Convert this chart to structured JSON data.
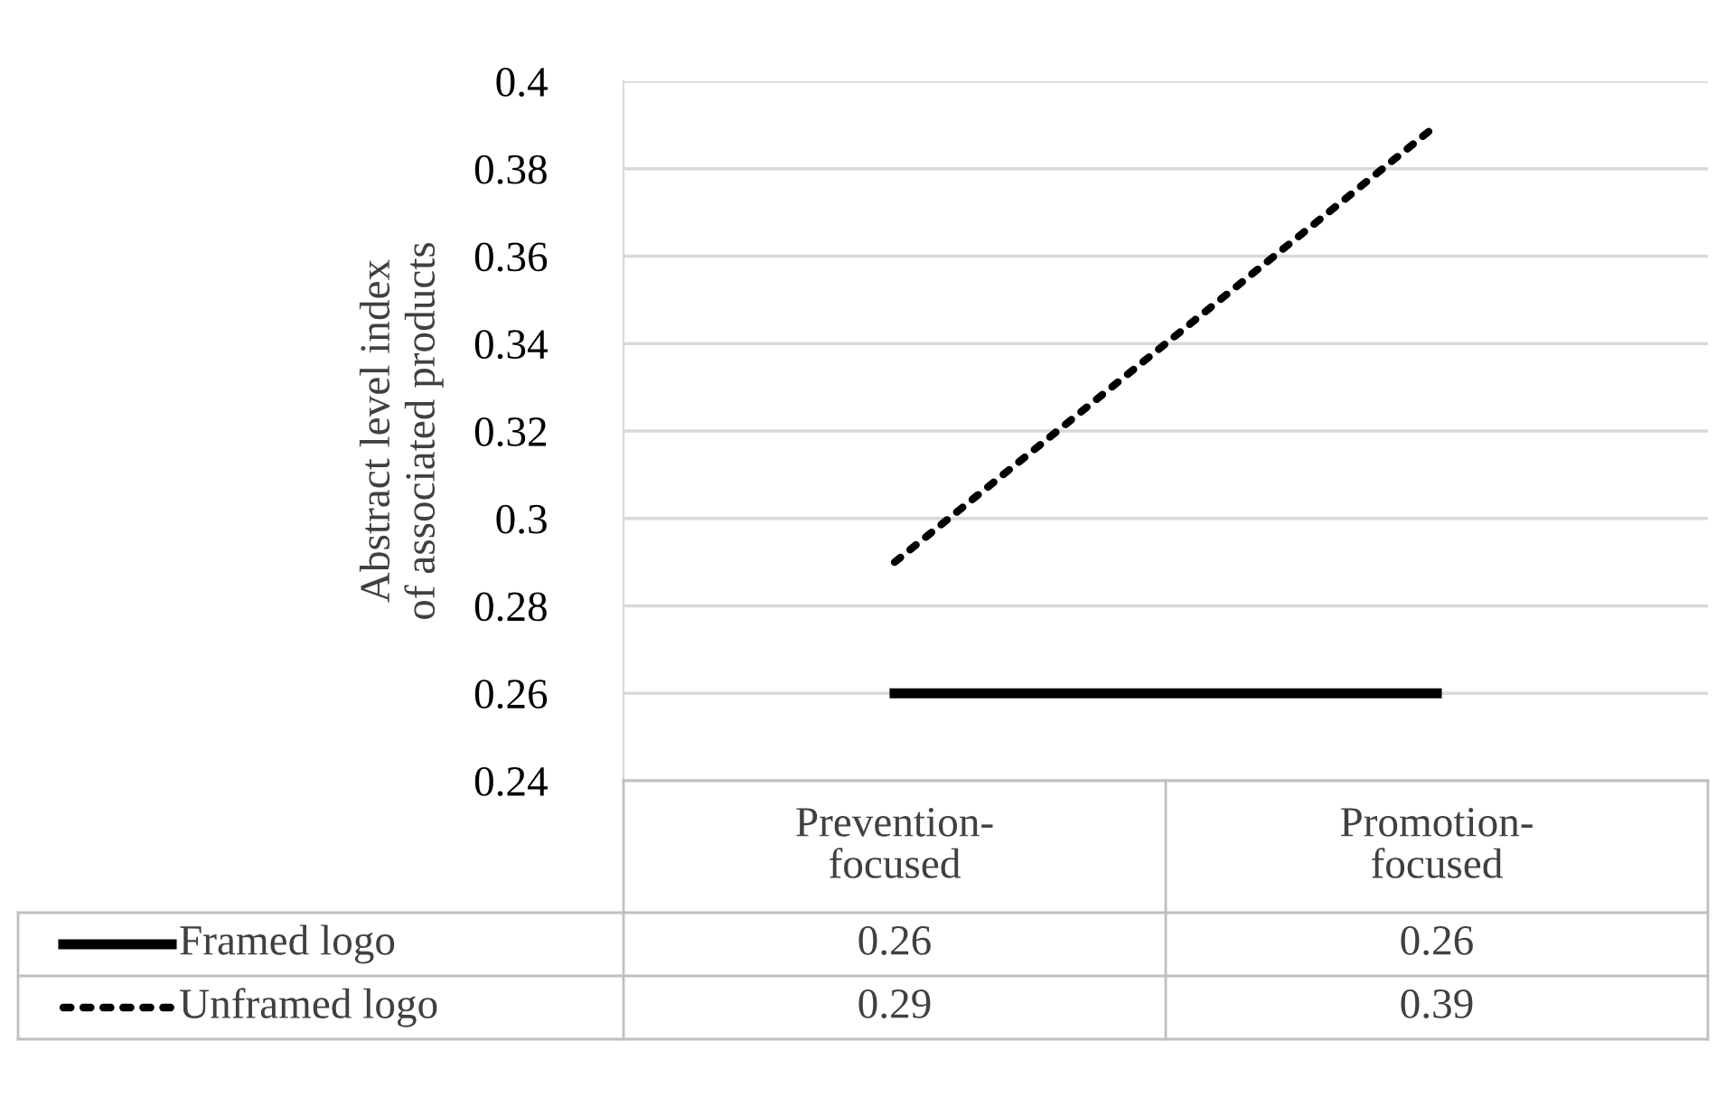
{
  "chart_data": {
    "type": "line",
    "ylabel": "Abstract level index\nof associated products",
    "categories": [
      "Prevention-\nfocused",
      "Promotion-\nfocused"
    ],
    "series": [
      {
        "name": "Framed logo",
        "color": "#000000",
        "values": [
          0.26,
          0.26
        ],
        "line_style": "solid"
      },
      {
        "name": "Unframed logo",
        "color": "#000000",
        "values": [
          0.29,
          0.39
        ],
        "line_style": "dotted"
      }
    ],
    "ylim": [
      0.24,
      0.4
    ],
    "yticks": [
      0.24,
      0.26,
      0.28,
      0.3,
      0.32,
      0.34,
      0.36,
      0.38,
      0.4
    ],
    "grid": "y",
    "legend": "bottom",
    "data_labels": true,
    "tick_labels": "y"
  }
}
